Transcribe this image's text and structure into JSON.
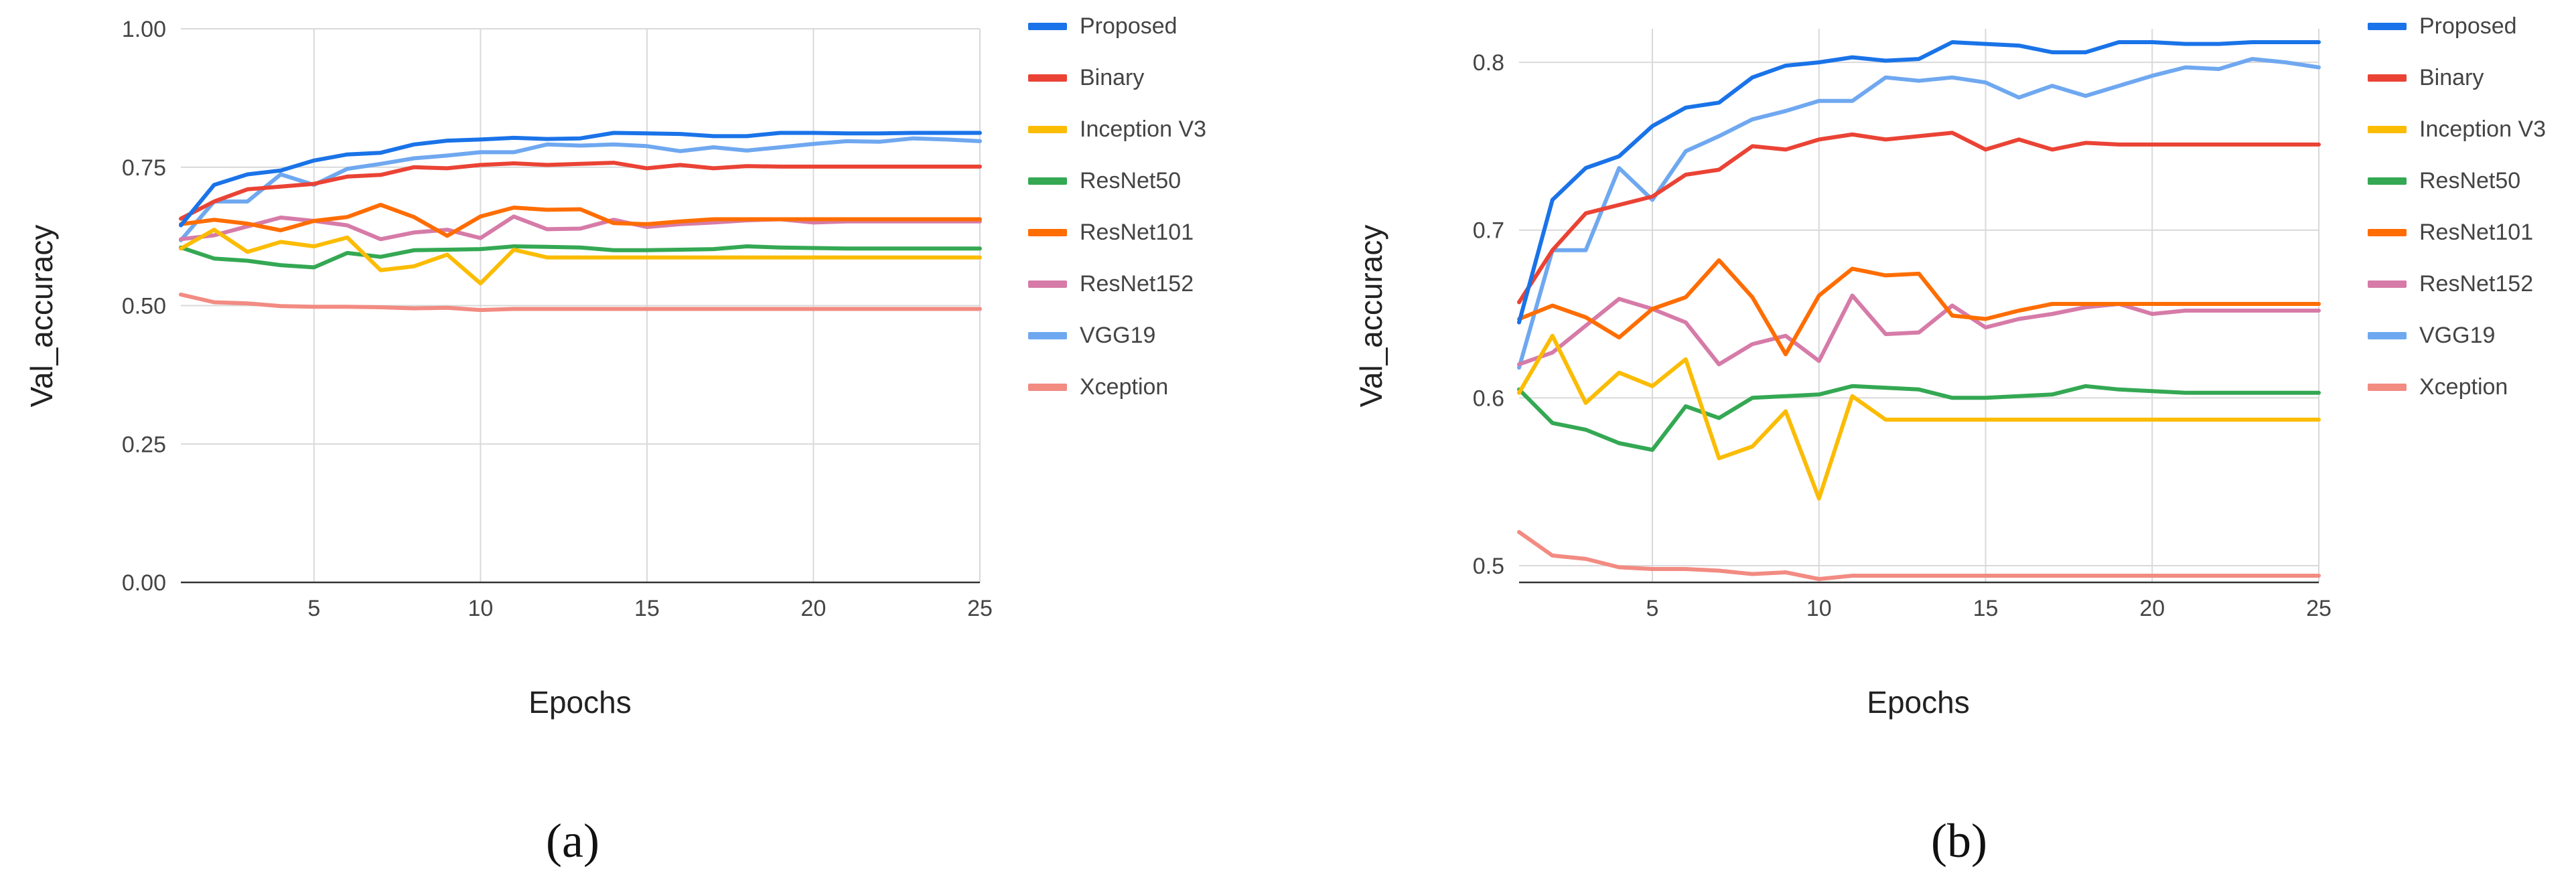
{
  "chart_data": [
    {
      "type": "line",
      "panel_label": "(a)",
      "title": "",
      "xlabel": "Epochs",
      "ylabel": "Val_accuracy",
      "xlim": [
        1,
        25
      ],
      "ylim": [
        0,
        1
      ],
      "xticks": [
        5,
        10,
        15,
        20,
        25
      ],
      "xtick_labels": [
        "5",
        "10",
        "15",
        "20",
        "25"
      ],
      "yticks": [
        0,
        0.25,
        0.5,
        0.75,
        1
      ],
      "ytick_labels": [
        "0.00",
        "0.25",
        "0.50",
        "0.75",
        "1.00"
      ],
      "grid": true,
      "legend": "right",
      "x": [
        1,
        2,
        3,
        4,
        5,
        6,
        7,
        8,
        9,
        10,
        11,
        12,
        13,
        14,
        15,
        16,
        17,
        18,
        19,
        20,
        21,
        22,
        23,
        24,
        25
      ],
      "series": [
        {
          "name": "Proposed",
          "color": "#1a73e8",
          "values": [
            0.645,
            0.718,
            0.737,
            0.744,
            0.762,
            0.773,
            0.776,
            0.791,
            0.798,
            0.8,
            0.803,
            0.801,
            0.802,
            0.812,
            0.811,
            0.81,
            0.806,
            0.806,
            0.812,
            0.812,
            0.811,
            0.811,
            0.812,
            0.812,
            0.812
          ]
        },
        {
          "name": "Binary",
          "color": "#ea4335",
          "values": [
            0.657,
            0.688,
            0.71,
            0.715,
            0.72,
            0.733,
            0.736,
            0.75,
            0.748,
            0.754,
            0.757,
            0.754,
            0.756,
            0.758,
            0.748,
            0.754,
            0.748,
            0.752,
            0.751,
            0.751,
            0.751,
            0.751,
            0.751,
            0.751,
            0.751
          ]
        },
        {
          "name": "Inception V3",
          "color": "#fbbc04",
          "values": [
            0.603,
            0.637,
            0.597,
            0.615,
            0.607,
            0.623,
            0.564,
            0.571,
            0.592,
            0.54,
            0.601,
            0.587,
            0.587,
            0.587,
            0.587,
            0.587,
            0.587,
            0.587,
            0.587,
            0.587,
            0.587,
            0.587,
            0.587,
            0.587,
            0.587
          ]
        },
        {
          "name": "ResNet50",
          "color": "#34a853",
          "values": [
            0.605,
            0.585,
            0.581,
            0.573,
            0.569,
            0.595,
            0.588,
            0.6,
            0.601,
            0.602,
            0.607,
            0.606,
            0.605,
            0.6,
            0.6,
            0.601,
            0.602,
            0.607,
            0.605,
            0.604,
            0.603,
            0.603,
            0.603,
            0.603,
            0.603
          ]
        },
        {
          "name": "ResNet101",
          "color": "#ff6d01",
          "values": [
            0.647,
            0.655,
            0.648,
            0.636,
            0.653,
            0.66,
            0.682,
            0.66,
            0.626,
            0.661,
            0.677,
            0.673,
            0.674,
            0.649,
            0.647,
            0.652,
            0.656,
            0.656,
            0.656,
            0.656,
            0.656,
            0.656,
            0.656,
            0.656,
            0.656
          ]
        },
        {
          "name": "ResNet152",
          "color": "#d67ba8",
          "values": [
            0.62,
            0.627,
            0.643,
            0.659,
            0.653,
            0.645,
            0.62,
            0.632,
            0.637,
            0.622,
            0.661,
            0.638,
            0.639,
            0.655,
            0.642,
            0.647,
            0.65,
            0.654,
            0.656,
            0.65,
            0.652,
            0.652,
            0.652,
            0.652,
            0.652
          ]
        },
        {
          "name": "VGG19",
          "color": "#6fa8f0",
          "values": [
            0.618,
            0.688,
            0.688,
            0.737,
            0.718,
            0.747,
            0.756,
            0.766,
            0.771,
            0.777,
            0.777,
            0.791,
            0.789,
            0.791,
            0.788,
            0.779,
            0.786,
            0.78,
            0.786,
            0.792,
            0.797,
            0.796,
            0.802,
            0.8,
            0.797
          ]
        },
        {
          "name": "Xception",
          "color": "#f28b82",
          "values": [
            0.52,
            0.506,
            0.504,
            0.499,
            0.498,
            0.498,
            0.497,
            0.495,
            0.496,
            0.492,
            0.494,
            0.494,
            0.494,
            0.494,
            0.494,
            0.494,
            0.494,
            0.494,
            0.494,
            0.494,
            0.494,
            0.494,
            0.494,
            0.494,
            0.494
          ]
        }
      ]
    },
    {
      "type": "line",
      "panel_label": "(b)",
      "title": "",
      "xlabel": "Epochs",
      "ylabel": "Val_accuracy",
      "xlim": [
        1,
        25
      ],
      "ylim": [
        0.49,
        0.82
      ],
      "xticks": [
        5,
        10,
        15,
        20,
        25
      ],
      "xtick_labels": [
        "5",
        "10",
        "15",
        "20",
        "25"
      ],
      "yticks": [
        0.5,
        0.6,
        0.7,
        0.8
      ],
      "ytick_labels": [
        "0.5",
        "0.6",
        "0.7",
        "0.8"
      ],
      "grid": true,
      "legend": "right",
      "x": [
        1,
        2,
        3,
        4,
        5,
        6,
        7,
        8,
        9,
        10,
        11,
        12,
        13,
        14,
        15,
        16,
        17,
        18,
        19,
        20,
        21,
        22,
        23,
        24,
        25
      ],
      "series": [
        {
          "name": "Proposed",
          "color": "#1a73e8",
          "values": [
            0.645,
            0.718,
            0.737,
            0.744,
            0.762,
            0.773,
            0.776,
            0.791,
            0.798,
            0.8,
            0.803,
            0.801,
            0.802,
            0.812,
            0.811,
            0.81,
            0.806,
            0.806,
            0.812,
            0.812,
            0.811,
            0.811,
            0.812,
            0.812,
            0.812
          ]
        },
        {
          "name": "Binary",
          "color": "#ea4335",
          "values": [
            0.657,
            0.688,
            0.71,
            0.715,
            0.72,
            0.733,
            0.736,
            0.75,
            0.748,
            0.754,
            0.757,
            0.754,
            0.756,
            0.758,
            0.748,
            0.754,
            0.748,
            0.752,
            0.751,
            0.751,
            0.751,
            0.751,
            0.751,
            0.751,
            0.751
          ]
        },
        {
          "name": "Inception V3",
          "color": "#fbbc04",
          "values": [
            0.603,
            0.637,
            0.597,
            0.615,
            0.607,
            0.623,
            0.564,
            0.571,
            0.592,
            0.54,
            0.601,
            0.587,
            0.587,
            0.587,
            0.587,
            0.587,
            0.587,
            0.587,
            0.587,
            0.587,
            0.587,
            0.587,
            0.587,
            0.587,
            0.587
          ]
        },
        {
          "name": "ResNet50",
          "color": "#34a853",
          "values": [
            0.605,
            0.585,
            0.581,
            0.573,
            0.569,
            0.595,
            0.588,
            0.6,
            0.601,
            0.602,
            0.607,
            0.606,
            0.605,
            0.6,
            0.6,
            0.601,
            0.602,
            0.607,
            0.605,
            0.604,
            0.603,
            0.603,
            0.603,
            0.603,
            0.603
          ]
        },
        {
          "name": "ResNet101",
          "color": "#ff6d01",
          "values": [
            0.647,
            0.655,
            0.648,
            0.636,
            0.653,
            0.66,
            0.682,
            0.66,
            0.626,
            0.661,
            0.677,
            0.673,
            0.674,
            0.649,
            0.647,
            0.652,
            0.656,
            0.656,
            0.656,
            0.656,
            0.656,
            0.656,
            0.656,
            0.656,
            0.656
          ]
        },
        {
          "name": "ResNet152",
          "color": "#d67ba8",
          "values": [
            0.62,
            0.627,
            0.643,
            0.659,
            0.653,
            0.645,
            0.62,
            0.632,
            0.637,
            0.622,
            0.661,
            0.638,
            0.639,
            0.655,
            0.642,
            0.647,
            0.65,
            0.654,
            0.656,
            0.65,
            0.652,
            0.652,
            0.652,
            0.652,
            0.652
          ]
        },
        {
          "name": "VGG19",
          "color": "#6fa8f0",
          "values": [
            0.618,
            0.688,
            0.688,
            0.737,
            0.718,
            0.747,
            0.756,
            0.766,
            0.771,
            0.777,
            0.777,
            0.791,
            0.789,
            0.791,
            0.788,
            0.779,
            0.786,
            0.78,
            0.786,
            0.792,
            0.797,
            0.796,
            0.802,
            0.8,
            0.797
          ]
        },
        {
          "name": "Xception",
          "color": "#f28b82",
          "values": [
            0.52,
            0.506,
            0.504,
            0.499,
            0.498,
            0.498,
            0.497,
            0.495,
            0.496,
            0.492,
            0.494,
            0.494,
            0.494,
            0.494,
            0.494,
            0.494,
            0.494,
            0.494,
            0.494,
            0.494,
            0.494,
            0.494,
            0.494,
            0.494,
            0.494
          ]
        }
      ]
    }
  ]
}
